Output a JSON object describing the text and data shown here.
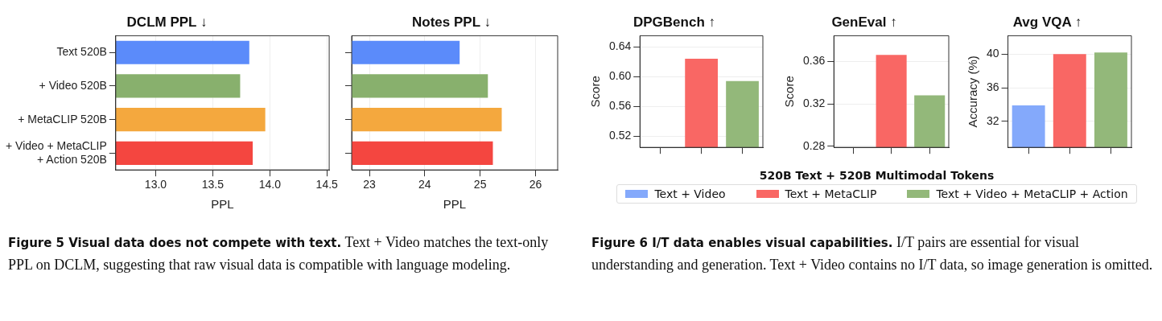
{
  "chart_data": [
    {
      "type": "bar",
      "orientation": "horizontal",
      "title": "DCLM PPL ↓",
      "xlabel": "PPL",
      "categories": [
        "Text 520B",
        "+ Video 520B",
        "+ MetaCLIP 520B",
        "+ Video + MetaCLIP + Action 520B"
      ],
      "values": [
        13.82,
        13.74,
        13.96,
        13.85
      ],
      "colors": [
        "#5b8bfa",
        "#88b06d",
        "#f4a83e",
        "#f44640"
      ],
      "xlim": [
        12.65,
        14.52
      ],
      "xticks": [
        {
          "value": 13,
          "label": "13.0"
        },
        13.5,
        {
          "value": 14,
          "label": "14.0"
        },
        14.5
      ],
      "grid": "x",
      "annotations": [
        "Figure 5  Visual data does not compete with text.",
        "Text + Video matches the text-only PPL on DCLM, suggesting that raw visual data is compatible with language modeling."
      ]
    },
    {
      "type": "bar",
      "orientation": "horizontal",
      "title": "Notes PPL ↓",
      "xlabel": "PPL",
      "categories": [
        null,
        null,
        null,
        null
      ],
      "values": [
        24.63,
        25.14,
        25.39,
        25.23
      ],
      "colors": [
        "#5b8bfa",
        "#88b06d",
        "#f4a83e",
        "#f44640"
      ],
      "xlim": [
        22.68,
        26.4
      ],
      "xticks": [
        23,
        24,
        25,
        26
      ],
      "grid": "x",
      "tick_labels": "x"
    },
    {
      "type": "bar",
      "title": "DPGBench ↑",
      "ylabel": "Score",
      "categories": [
        null,
        null,
        null
      ],
      "series": [
        {
          "name": "Text + Video",
          "color": "#84a9fb",
          "values": [
            null,
            null,
            null
          ]
        },
        {
          "name": "Text + MetaCLIP",
          "color": "#f96764",
          "values": [
            null,
            0.624,
            null
          ]
        },
        {
          "name": "Text + Video + MetaCLIP + Action",
          "color": "#93b87a",
          "values": [
            null,
            null,
            0.594
          ]
        }
      ],
      "ylim": [
        0.505,
        0.655
      ],
      "yticks": [
        {
          "value": 0.52,
          "label": "0.52"
        },
        {
          "value": 0.56,
          "label": "0.56"
        },
        {
          "value": 0.6,
          "label": "0.60"
        },
        {
          "value": 0.64,
          "label": "0.64"
        }
      ],
      "grid": "y",
      "legend": "bottom",
      "legend_title": "520B Text + 520B Multimodal Tokens",
      "annotations": [
        "Figure 6  I/T data enables visual capabilities.",
        "I/T pairs are essential for visual understanding and generation. Text + Video contains no I/T data, so image generation is omitted."
      ]
    },
    {
      "type": "bar",
      "title": "GenEval ↑",
      "ylabel": "Score",
      "categories": [
        null,
        null,
        null
      ],
      "series": [
        {
          "color": "#84a9fb",
          "values": [
            null,
            null,
            null
          ]
        },
        {
          "color": "#f96764",
          "values": [
            null,
            0.366,
            null
          ]
        },
        {
          "color": "#93b87a",
          "values": [
            null,
            null,
            0.328
          ]
        }
      ],
      "ylim": [
        0.279,
        0.384
      ],
      "yticks": [
        0.28,
        0.32,
        0.36
      ],
      "grid": "y"
    },
    {
      "type": "bar",
      "title": "Avg VQA ↑",
      "ylabel": "Accuracy (%)",
      "categories": [
        null,
        null,
        null
      ],
      "series": [
        {
          "color": "#84a9fb",
          "values": [
            33.9,
            null,
            null
          ]
        },
        {
          "color": "#f96764",
          "values": [
            null,
            40,
            null
          ]
        },
        {
          "color": "#93b87a",
          "values": [
            null,
            null,
            40.2
          ]
        }
      ],
      "ylim": [
        28.9,
        42.2
      ],
      "yticks": [
        32,
        36,
        40
      ],
      "grid": "y"
    }
  ]
}
